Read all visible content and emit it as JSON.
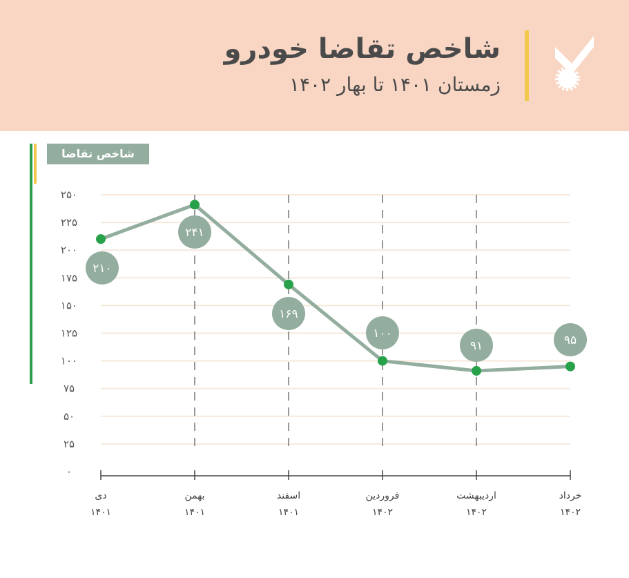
{
  "header": {
    "title": "شاخص تقاضا خودرو",
    "subtitle": "زمستان ۱۴۰۱ تا بهار ۱۴۰۲",
    "logo_icon": "check-badge-icon",
    "accent_color": "#f2c94c",
    "background_color": "#f8d6c3"
  },
  "legend": {
    "label": "شاخص تقاضا",
    "color": "#93ad9f"
  },
  "colors": {
    "line": "#93ad9f",
    "marker": "#27a24a",
    "label_bubble": "#93ad9f",
    "grid": "#f6e9dc"
  },
  "y_ticks": [
    "۰",
    "۲۵",
    "۵۰",
    "۷۵",
    "۱۰۰",
    "۱۲۵",
    "۱۵۰",
    "۱۷۵",
    "۲۰۰",
    "۲۲۵",
    "۲۵۰"
  ],
  "x_labels": [
    {
      "month": "دی",
      "year": "۱۴۰۱"
    },
    {
      "month": "بهمن",
      "year": "۱۴۰۱"
    },
    {
      "month": "اسفند",
      "year": "۱۴۰۱"
    },
    {
      "month": "فروردین",
      "year": "۱۴۰۲"
    },
    {
      "month": "اردیبهشت",
      "year": "۱۴۰۲"
    },
    {
      "month": "خرداد",
      "year": "۱۴۰۲"
    }
  ],
  "data_labels": [
    "۲۱۰",
    "۲۴۱",
    "۱۶۹",
    "۱۰۰",
    "۹۱",
    "۹۵"
  ],
  "chart_data": {
    "type": "line",
    "title": "شاخص تقاضا خودرو",
    "subtitle": "زمستان ۱۴۰۱ تا بهار ۱۴۰۲",
    "categories": [
      "دی ۱۴۰۱",
      "بهمن ۱۴۰۱",
      "اسفند ۱۴۰۱",
      "فروردین ۱۴۰۲",
      "اردیبهشت ۱۴۰۲",
      "خرداد ۱۴۰۲"
    ],
    "series": [
      {
        "name": "شاخص تقاضا",
        "values": [
          210,
          241,
          169,
          100,
          91,
          95
        ]
      }
    ],
    "xlabel": "",
    "ylabel": "",
    "ylim": [
      0,
      250
    ],
    "yticks": [
      0,
      25,
      50,
      75,
      100,
      125,
      150,
      175,
      200,
      225,
      250
    ],
    "grid": true,
    "legend_position": "top-left"
  }
}
